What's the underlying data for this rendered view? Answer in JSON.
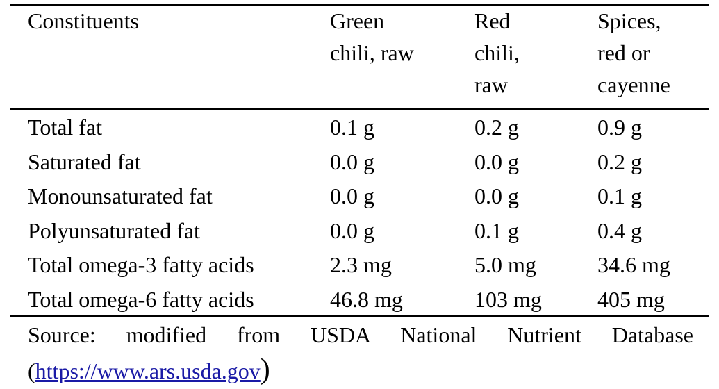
{
  "table": {
    "header": [
      "Constituents",
      "Green chili, raw",
      "Red chili, raw",
      "Spices, red or cayenne"
    ],
    "rows": [
      [
        "Total fat",
        "0.1 g",
        "0.2 g",
        "0.9 g"
      ],
      [
        "Saturated fat",
        "0.0 g",
        "0.0 g",
        "0.2 g"
      ],
      [
        "Monounsaturated fat",
        "0.0 g",
        "0.0 g",
        "0.1 g"
      ],
      [
        "Polyunsaturated fat",
        "0.0 g",
        "0.1 g",
        "0.4 g"
      ],
      [
        "Total omega-3 fatty acids",
        "2.3 mg",
        "5.0 mg",
        "34.6 mg"
      ],
      [
        "Total omega-6 fatty acids",
        "46.8 mg",
        "103 mg",
        "405 mg"
      ]
    ]
  },
  "source": {
    "text": "Source: modified from USDA National Nutrient Database (",
    "link": "https://www.ars.usda.gov",
    "end": ")"
  }
}
